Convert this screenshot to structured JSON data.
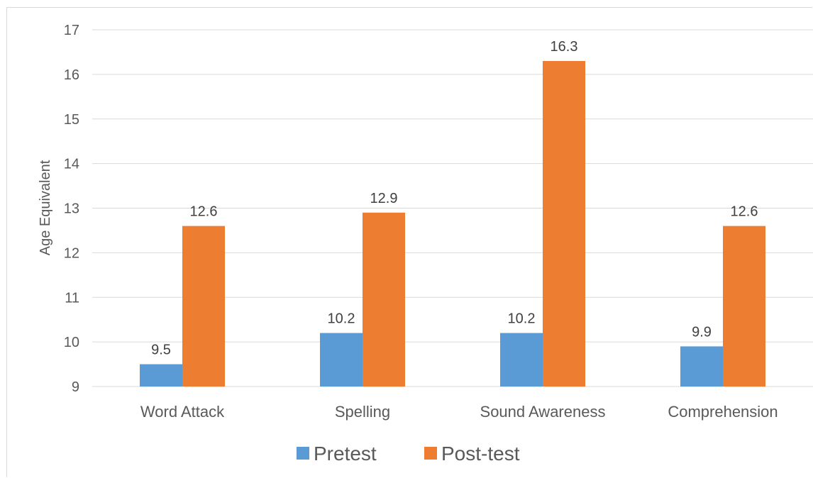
{
  "chart_data": {
    "type": "bar",
    "title": "",
    "xlabel": "",
    "ylabel": "Age Equivalent",
    "ylim": [
      9,
      17
    ],
    "yticks": [
      9,
      10,
      11,
      12,
      13,
      14,
      15,
      16,
      17
    ],
    "grid": true,
    "legend_position": "bottom",
    "categories": [
      "Word Attack",
      "Spelling",
      "Sound Awareness",
      "Comprehension"
    ],
    "series": [
      {
        "name": "Pretest",
        "color": "#5b9bd5",
        "values": [
          9.5,
          10.2,
          10.2,
          9.9
        ]
      },
      {
        "name": "Post-test",
        "color": "#ed7d31",
        "values": [
          12.6,
          12.9,
          16.3,
          12.6
        ]
      }
    ]
  }
}
